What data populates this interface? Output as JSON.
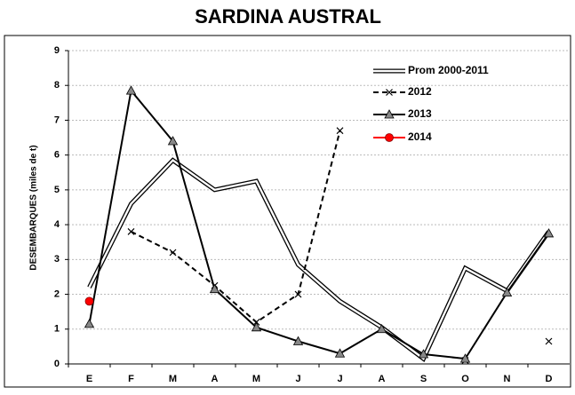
{
  "chart_data": {
    "type": "line",
    "title": "SARDINA AUSTRAL",
    "y_label": "DESEMBARQUES    (miles de t)",
    "categories": [
      "E",
      "F",
      "M",
      "A",
      "M",
      "J",
      "J",
      "A",
      "S",
      "O",
      "N",
      "D"
    ],
    "ylim": [
      0,
      9
    ],
    "yticks": [
      0,
      1,
      2,
      3,
      4,
      5,
      6,
      7,
      8,
      9
    ],
    "grid": true,
    "legend": "top-right",
    "series": [
      {
        "name": "Prom 2000-2011",
        "color": "#000000",
        "style": "double",
        "marker": "none",
        "values": [
          2.2,
          4.6,
          5.85,
          5.0,
          5.25,
          2.85,
          1.8,
          1.05,
          0.15,
          2.75,
          2.1,
          3.8
        ]
      },
      {
        "name": "2012",
        "color": "#000000",
        "style": "dashed",
        "marker": "x",
        "values": [
          null,
          3.8,
          3.2,
          2.25,
          1.2,
          2.0,
          6.7,
          null,
          null,
          0.1,
          null,
          0.65
        ]
      },
      {
        "name": "2013",
        "color": "#000000",
        "style": "solid",
        "marker": "triangle",
        "values": [
          1.15,
          7.85,
          6.4,
          2.15,
          1.05,
          0.65,
          0.3,
          1.0,
          0.28,
          0.15,
          2.05,
          3.75
        ]
      },
      {
        "name": "2014",
        "color": "#ff0000",
        "style": "solid",
        "marker": "circle",
        "values": [
          1.8,
          null,
          null,
          null,
          null,
          null,
          null,
          null,
          null,
          null,
          null,
          null
        ]
      }
    ]
  }
}
